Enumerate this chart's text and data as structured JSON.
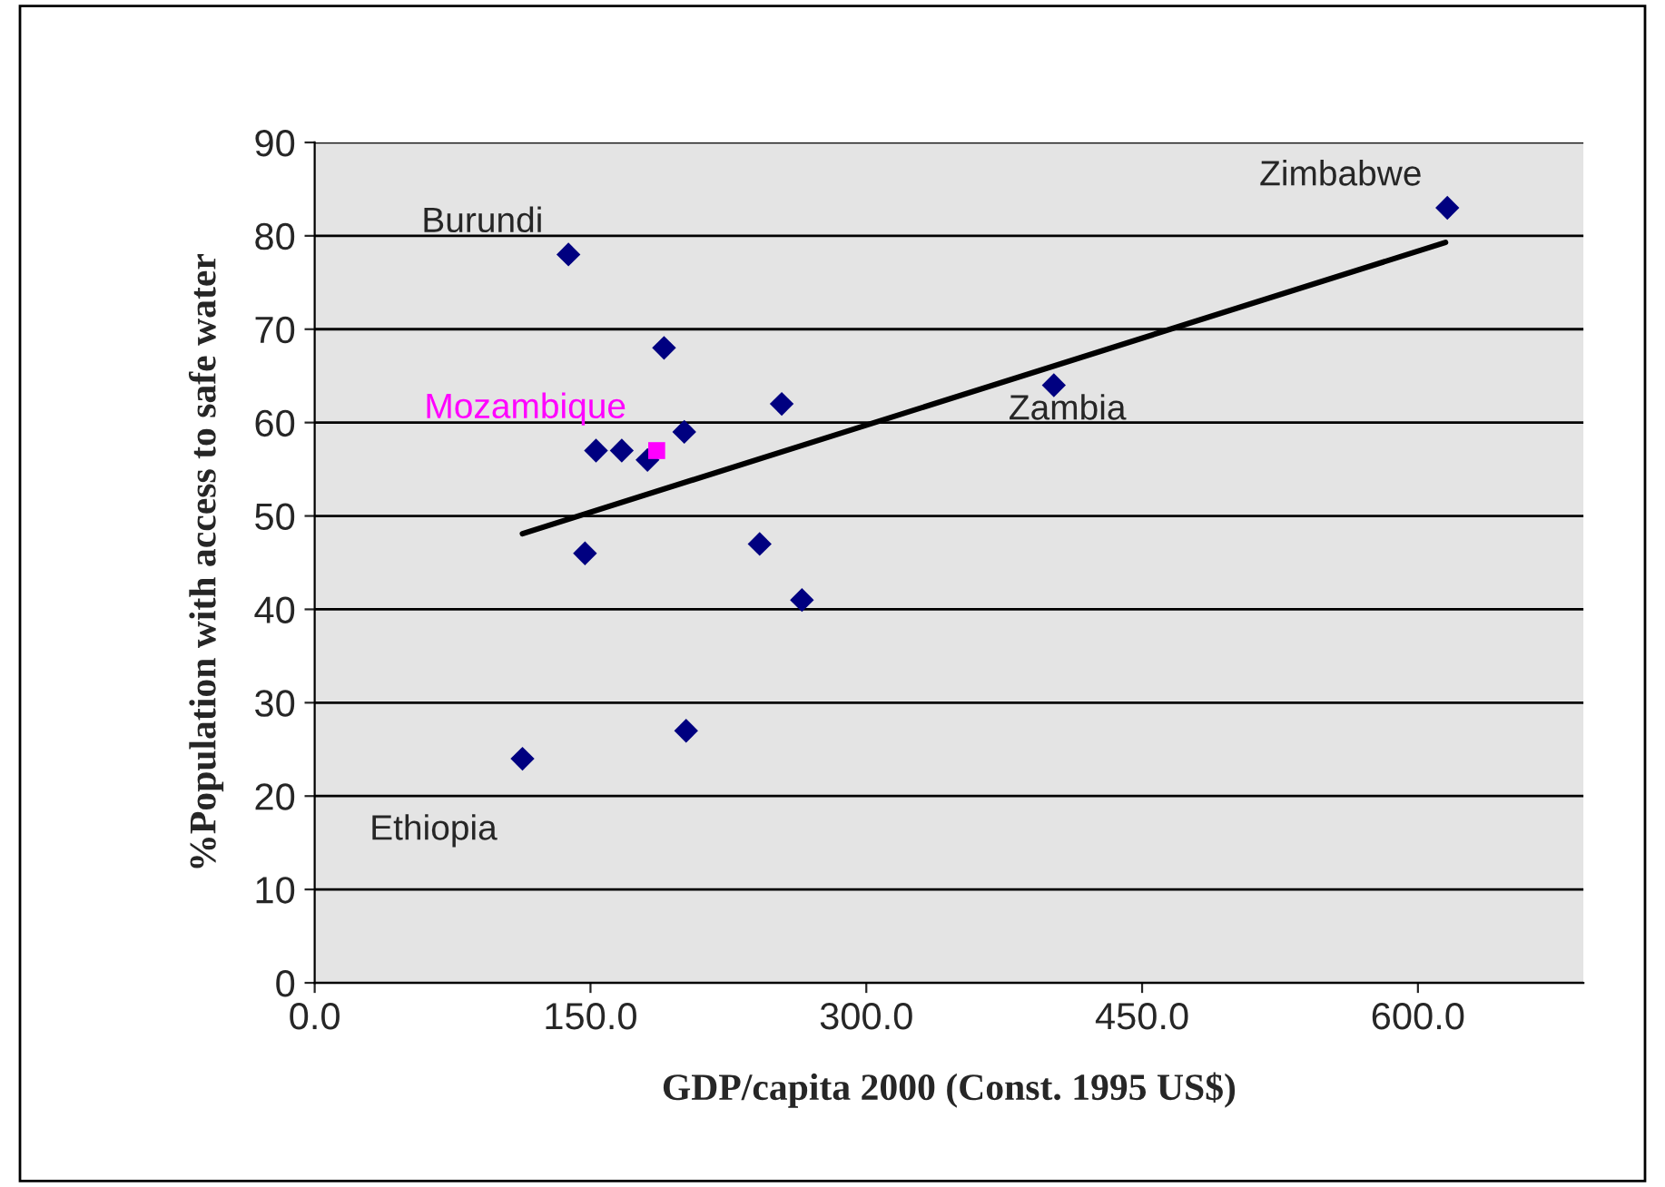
{
  "chart_data": {
    "type": "scatter",
    "xlabel": "GDP/capita 2000 (Const. 1995 US$)",
    "ylabel": "%Population with access to safe water",
    "xlim": [
      0,
      690
    ],
    "ylim": [
      0,
      90
    ],
    "xticks": [
      {
        "value": 0,
        "label": "0.0"
      },
      {
        "value": 150,
        "label": "150.0"
      },
      {
        "value": 300,
        "label": "300.0"
      },
      {
        "value": 450,
        "label": "450.0"
      },
      {
        "value": 600,
        "label": "600.0"
      }
    ],
    "yticks": [
      0,
      10,
      20,
      30,
      40,
      50,
      60,
      70,
      80,
      90
    ],
    "grid": "y",
    "marker": "diamond",
    "series": [
      {
        "color": "#000080",
        "x": [
          138,
          616,
          402,
          190,
          254,
          201,
          153,
          167,
          181,
          147,
          242,
          265,
          202,
          113
        ],
        "values": [
          78,
          83,
          64,
          68,
          62,
          59,
          57,
          57,
          56,
          46,
          47,
          41,
          27,
          24
        ]
      },
      {
        "name": "Mozambique",
        "color": "#ff00ff",
        "marker": "square",
        "x": [
          186
        ],
        "values": [
          57
        ]
      },
      {
        "type": "line",
        "color": "#000000",
        "marker": "none",
        "x": [
          113,
          615
        ],
        "values": [
          48.1,
          79.3
        ]
      }
    ],
    "annotations": [
      {
        "text": "Burundi",
        "x": 138,
        "y": 78
      },
      {
        "text": "Zimbabwe",
        "x": 616,
        "y": 83
      },
      {
        "text": "Zambia",
        "x": 402,
        "y": 64
      },
      {
        "text": "Ethiopia",
        "x": 113,
        "y": 24
      }
    ]
  }
}
